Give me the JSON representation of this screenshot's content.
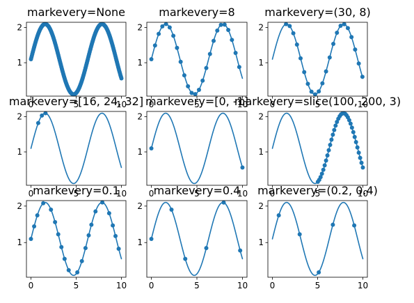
{
  "colors": {
    "series": "#1f77b4",
    "axes": "#000000",
    "background": "#ffffff"
  },
  "chart_data": {
    "type": "line",
    "layout": "grid-3x3",
    "function": "y = sin(x) + 1.1 (x sampled 0..10 in 200 points)",
    "xlim": [
      -0.5,
      10.5
    ],
    "ylim": [
      0.05,
      2.15
    ],
    "xticks": [
      0,
      5,
      10
    ],
    "yticks": [
      1,
      2
    ],
    "grid": false,
    "legend": "none",
    "marker": "circle",
    "series_color": "#1f77b4",
    "panels": [
      {
        "title": "markevery=None",
        "markevery": {
          "kind": "none"
        }
      },
      {
        "title": "markevery=8",
        "markevery": {
          "kind": "int",
          "value": 8
        }
      },
      {
        "title": "markevery=(30, 8)",
        "markevery": {
          "kind": "tuple",
          "start": 30,
          "step": 8
        }
      },
      {
        "title": "markevery=[16, 24, 32]",
        "markevery": {
          "kind": "list",
          "indices": [
            16,
            24,
            32
          ]
        }
      },
      {
        "title": "markevery=[0, -1]",
        "markevery": {
          "kind": "list",
          "indices": [
            0,
            -1
          ]
        }
      },
      {
        "title": "markevery=slice(100, 200, 3)",
        "markevery": {
          "kind": "slice",
          "start": 100,
          "stop": 200,
          "step": 3
        }
      },
      {
        "title": "markevery=0.1",
        "markevery": {
          "kind": "float",
          "value": 0.1
        }
      },
      {
        "title": "markevery=0.4",
        "markevery": {
          "kind": "float",
          "value": 0.4
        }
      },
      {
        "title": "markevery=(0.2, 0.4)",
        "markevery": {
          "kind": "floattuple",
          "start": 0.2,
          "step": 0.4
        }
      }
    ]
  }
}
